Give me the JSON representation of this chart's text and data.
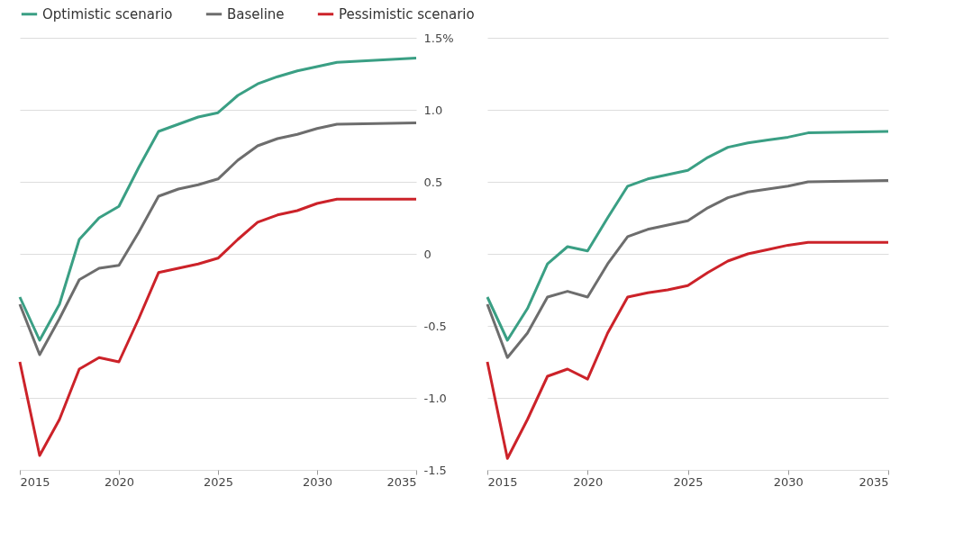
{
  "chart_data": [
    {
      "type": "line",
      "legend": "top",
      "grid": "y",
      "line_style": "solid",
      "marker": "none",
      "xlim": [
        2015,
        2035
      ],
      "xticks": [
        2015,
        2020,
        2025,
        2030,
        2035
      ],
      "ylim": [
        -1.5,
        1.5
      ],
      "yticks": [
        {
          "value": 1.5,
          "label": "1.5%"
        },
        {
          "value": 1.0,
          "label": "1.0"
        },
        {
          "value": 0.5,
          "label": "0.5"
        },
        0,
        {
          "value": -0.5,
          "label": "-0.5"
        },
        {
          "value": -1.0,
          "label": "-1.0"
        },
        {
          "value": -1.5,
          "label": "-1.5"
        }
      ],
      "x": [
        2015,
        2016,
        2017,
        2018,
        2019,
        2020,
        2021,
        2022,
        2023,
        2024,
        2025,
        2026,
        2027,
        2028,
        2029,
        2030,
        2031,
        2035
      ],
      "series": [
        {
          "name": "Optimistic scenario",
          "color": "#3a9f84",
          "values": [
            -0.3,
            -0.6,
            -0.35,
            0.1,
            0.25,
            0.33,
            0.6,
            0.85,
            0.9,
            0.95,
            0.98,
            1.1,
            1.18,
            1.23,
            1.27,
            1.3,
            1.33,
            1.36
          ]
        },
        {
          "name": "Baseline",
          "color": "#6d6d6d",
          "values": [
            -0.35,
            -0.7,
            -0.45,
            -0.18,
            -0.1,
            -0.08,
            0.15,
            0.4,
            0.45,
            0.48,
            0.52,
            0.65,
            0.75,
            0.8,
            0.83,
            0.87,
            0.9,
            0.91
          ]
        },
        {
          "name": "Pessimistic scenario",
          "color": "#cc2229",
          "values": [
            -0.75,
            -1.4,
            -1.15,
            -0.8,
            -0.72,
            -0.75,
            -0.45,
            -0.13,
            -0.1,
            -0.07,
            -0.03,
            0.1,
            0.22,
            0.27,
            0.3,
            0.35,
            0.38,
            0.38
          ]
        }
      ]
    },
    {
      "type": "line",
      "legend": false,
      "grid": "y",
      "line_style": "solid",
      "marker": "none",
      "tick_labels": "x",
      "xlim": [
        2015,
        2035
      ],
      "xticks": [
        2015,
        2020,
        2025,
        2030,
        2035
      ],
      "ylim": [
        -1.5,
        1.5
      ],
      "x": [
        2015,
        2016,
        2017,
        2018,
        2019,
        2020,
        2021,
        2022,
        2023,
        2024,
        2025,
        2026,
        2027,
        2028,
        2029,
        2030,
        2031,
        2035
      ],
      "series": [
        {
          "color": "#3a9f84",
          "values": [
            -0.3,
            -0.6,
            -0.38,
            -0.07,
            0.05,
            0.02,
            0.25,
            0.47,
            0.52,
            0.55,
            0.58,
            0.67,
            0.74,
            0.77,
            0.79,
            0.81,
            0.84,
            0.85
          ]
        },
        {
          "color": "#6d6d6d",
          "values": [
            -0.35,
            -0.72,
            -0.55,
            -0.3,
            -0.26,
            -0.3,
            -0.07,
            0.12,
            0.17,
            0.2,
            0.23,
            0.32,
            0.39,
            0.43,
            0.45,
            0.47,
            0.5,
            0.51
          ]
        },
        {
          "color": "#cc2229",
          "values": [
            -0.75,
            -1.42,
            -1.15,
            -0.85,
            -0.8,
            -0.87,
            -0.55,
            -0.3,
            -0.27,
            -0.25,
            -0.22,
            -0.13,
            -0.05,
            0.0,
            0.03,
            0.06,
            0.08,
            0.08
          ]
        }
      ]
    }
  ]
}
